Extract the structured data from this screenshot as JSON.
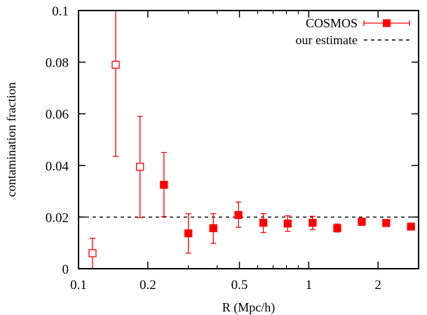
{
  "chart_data": {
    "type": "scatter",
    "title": "",
    "xlabel": "R (Mpc/h)",
    "ylabel": "contamination fraction",
    "xscale": "log",
    "xlim": [
      0.1,
      3.0
    ],
    "ylim": [
      0,
      0.1
    ],
    "x_ticks": [
      0.1,
      0.2,
      0.5,
      1,
      2
    ],
    "x_tick_labels": [
      "0.1",
      "0.2",
      "0.5",
      "1",
      "2"
    ],
    "y_ticks": [
      0,
      0.02,
      0.04,
      0.06,
      0.08,
      0.1
    ],
    "y_tick_labels": [
      "0",
      "0.02",
      "0.04",
      "0.06",
      "0.08",
      "0.1"
    ],
    "grid": false,
    "legend_position": "top-right",
    "series": [
      {
        "name": "COSMOS",
        "color": "#ff0000",
        "marker": "square",
        "points": [
          {
            "x": 0.115,
            "y": 0.006,
            "err_low": 0.0,
            "err_high": 0.0118,
            "filled": false
          },
          {
            "x": 0.145,
            "y": 0.079,
            "err_low": 0.0435,
            "err_high": 0.1,
            "filled": false
          },
          {
            "x": 0.185,
            "y": 0.0395,
            "err_low": 0.0198,
            "err_high": 0.059,
            "filled": false
          },
          {
            "x": 0.235,
            "y": 0.0325,
            "err_low": 0.0202,
            "err_high": 0.045,
            "filled": true
          },
          {
            "x": 0.3,
            "y": 0.0137,
            "err_low": 0.006,
            "err_high": 0.0213,
            "filled": true
          },
          {
            "x": 0.385,
            "y": 0.0157,
            "err_low": 0.0098,
            "err_high": 0.0213,
            "filled": true
          },
          {
            "x": 0.495,
            "y": 0.0208,
            "err_low": 0.016,
            "err_high": 0.0258,
            "filled": true
          },
          {
            "x": 0.635,
            "y": 0.0178,
            "err_low": 0.014,
            "err_high": 0.0213,
            "filled": true
          },
          {
            "x": 0.81,
            "y": 0.0175,
            "err_low": 0.0145,
            "err_high": 0.0205,
            "filled": true
          },
          {
            "x": 1.04,
            "y": 0.0178,
            "err_low": 0.0152,
            "err_high": 0.0203,
            "filled": true
          },
          {
            "x": 1.33,
            "y": 0.0157,
            "err_low": 0.0142,
            "err_high": 0.0173,
            "filled": true
          },
          {
            "x": 1.7,
            "y": 0.0182,
            "err_low": 0.0168,
            "err_high": 0.0195,
            "filled": true
          },
          {
            "x": 2.17,
            "y": 0.0177,
            "err_low": 0.0165,
            "err_high": 0.019,
            "filled": true
          },
          {
            "x": 2.78,
            "y": 0.0163,
            "err_low": 0.0163,
            "err_high": 0.0163,
            "filled": true
          }
        ]
      },
      {
        "name": "our estimate",
        "color": "#000000",
        "style": "dashed",
        "y": 0.02
      }
    ]
  }
}
